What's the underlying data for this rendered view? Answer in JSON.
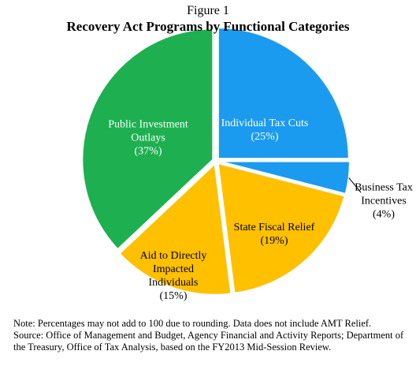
{
  "chart_data": {
    "type": "pie",
    "supertitle": "Figure 1",
    "title": "Recovery Act Programs by Functional Categories",
    "categories": [
      "Individual Tax Cuts",
      "Business Tax Incentives",
      "State Fiscal Relief",
      "Aid to Directly Impacted Individuals",
      "Public Investment Outlays"
    ],
    "values": [
      25,
      4,
      19,
      15,
      37
    ],
    "value_labels": [
      "(25%)",
      "(4%)",
      "(19%)",
      "(15%)",
      "(37%)"
    ],
    "colors": [
      "#1a9bf0",
      "#1a9bf0",
      "#ffc000",
      "#ffc000",
      "#1eb050"
    ],
    "notes": [
      "Note: Percentages may not add to 100 due to rounding.  Data does not include AMT Relief.",
      "Source:  Office of Management and Budget, Agency Financial and Activity Reports; Department of the Treasury, Office of Tax Analysis, based on the FY2013 Mid-Session Review."
    ]
  }
}
